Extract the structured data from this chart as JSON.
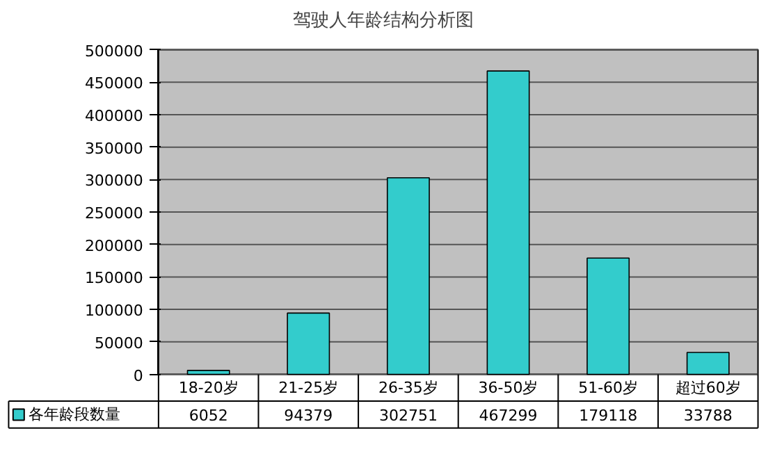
{
  "chart_data": {
    "type": "bar",
    "title": "驾驶人年龄结构分析图",
    "categories": [
      "18-20岁",
      "21-25岁",
      "26-35岁",
      "36-50岁",
      "51-60岁",
      "超过60岁"
    ],
    "series": [
      {
        "name": "各年龄段数量",
        "color": "#33cccc",
        "values": [
          6052,
          94379,
          302751,
          467299,
          179118,
          33788
        ]
      }
    ],
    "ylim": [
      0,
      500000
    ],
    "yticks": [
      0,
      50000,
      100000,
      150000,
      200000,
      250000,
      300000,
      350000,
      400000,
      450000,
      500000
    ],
    "grid": "y",
    "legend": "bottom left",
    "data_labels": true
  }
}
